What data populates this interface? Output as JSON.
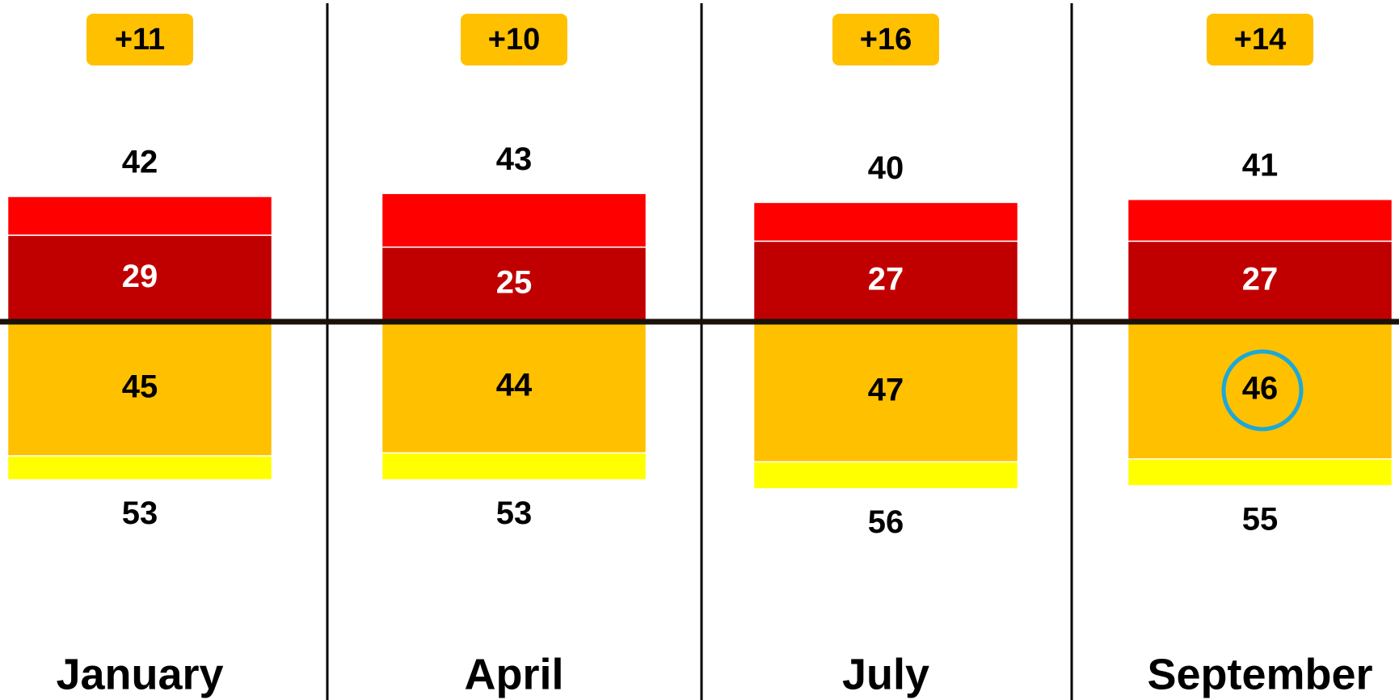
{
  "chart_data": {
    "type": "diverging-bar",
    "categories": [
      "January",
      "April",
      "July",
      "September"
    ],
    "above": [
      {
        "color": "#c00000",
        "label_color": "#ffffff",
        "values": [
          29,
          25,
          27,
          27
        ],
        "printed": true
      },
      {
        "color": "#ff0000",
        "values": [
          13,
          18,
          13,
          14
        ],
        "printed": false
      }
    ],
    "below": [
      {
        "color": "#ffc000",
        "label_color": "#000000",
        "values": [
          45,
          44,
          47,
          46
        ],
        "printed": true
      },
      {
        "color": "#ffff00",
        "values": [
          8,
          9,
          9,
          9
        ],
        "printed": false
      }
    ],
    "totals_above": [
      42,
      43,
      40,
      41
    ],
    "totals_below": [
      53,
      53,
      56,
      55
    ],
    "net": {
      "values": [
        11,
        10,
        16,
        14
      ],
      "value_labels": [
        "+11",
        "+10",
        "+16",
        "+14"
      ],
      "color": "#ffc000"
    },
    "highlight": {
      "series": "below.0",
      "index": 3,
      "color": "#1ca8d8"
    }
  }
}
